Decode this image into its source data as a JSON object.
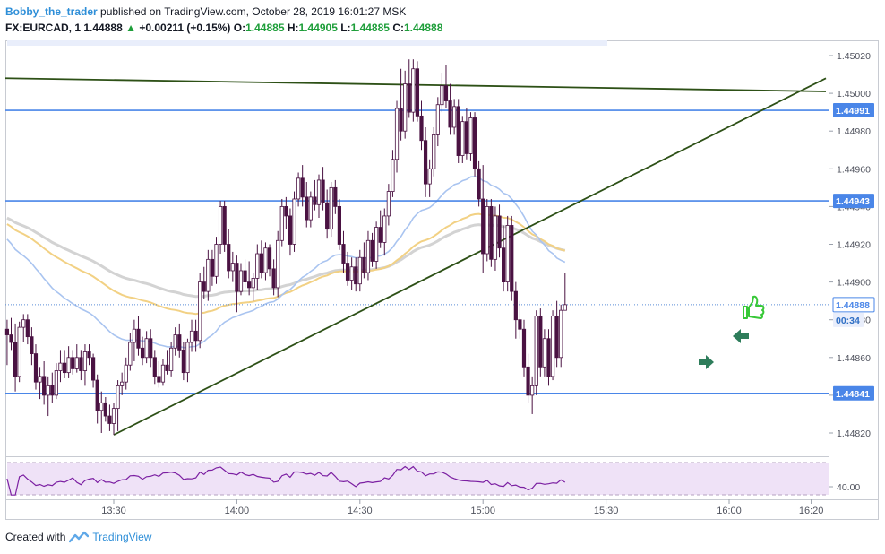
{
  "header": {
    "author": "Bobby_the_trader",
    "published": " published on TradingView.com, October 28, 2019 16:01:27 MSK",
    "symbol": "FX:EURCAD, 1",
    "last": "1.44888",
    "change_arrow": "▲",
    "change": "+0.00211 (+0.15%)",
    "o_label": "O:",
    "o": "1.44885",
    "h_label": "H:",
    "h": "1.44905",
    "l_label": "L:",
    "l": "1.44885",
    "c_label": "C:",
    "c": "1.44888"
  },
  "footer": {
    "created_with": "Created with",
    "brand": "TradingView"
  },
  "chart_data": {
    "type": "candlestick",
    "symbol": "FX:EURCAD",
    "interval": "1",
    "ylim": [
      1.4481,
      1.45035
    ],
    "y_ticks": [
      1.4502,
      1.45,
      1.4498,
      1.4496,
      1.4494,
      1.4492,
      1.449,
      1.4488,
      1.4486,
      1.4484,
      1.4482
    ],
    "x_ticks": [
      {
        "label": "13:30",
        "min": 0
      },
      {
        "label": "14:00",
        "min": 30
      },
      {
        "label": "14:30",
        "min": 60
      },
      {
        "label": "15:00",
        "min": 90
      },
      {
        "label": "15:30",
        "min": 120
      },
      {
        "label": "16:00",
        "min": 150
      },
      {
        "label": "16:20",
        "min": 170
      }
    ],
    "price_labels": [
      {
        "value": "1.44991",
        "type": "level"
      },
      {
        "value": "1.44943",
        "type": "level"
      },
      {
        "value": "1.44888",
        "type": "last"
      },
      {
        "value": "00:34",
        "type": "countdown"
      },
      {
        "value": "1.44841",
        "type": "level"
      }
    ],
    "horizontal_levels": [
      1.44991,
      1.44943,
      1.44841
    ],
    "last_price": 1.44888,
    "indicator": {
      "name": "RSI",
      "tick_label": "40.00"
    },
    "colors": {
      "up": "#ffffff",
      "down": "#4a1242",
      "level": "#4a86e8",
      "trendline": "#2d5016",
      "ma_blue": "#a9c4f0",
      "ma_yellow": "#f2d184",
      "ma_gray": "#d3d3d3",
      "rsi": "#7b1fa2",
      "rsi_fill": "#efe2f7",
      "arrow": "#2e7d5b",
      "thumb": "#37c837"
    },
    "candles": [
      [
        1.44875,
        1.4488,
        1.44856,
        1.44872
      ],
      [
        1.44872,
        1.44881,
        1.44864,
        1.44868
      ],
      [
        1.44868,
        1.44878,
        1.44842,
        1.4485
      ],
      [
        1.4485,
        1.44879,
        1.44847,
        1.44876
      ],
      [
        1.44876,
        1.44883,
        1.44868,
        1.4488
      ],
      [
        1.4488,
        1.44883,
        1.44867,
        1.44871
      ],
      [
        1.44871,
        1.44876,
        1.44856,
        1.44862
      ],
      [
        1.44862,
        1.44867,
        1.44843,
        1.44847
      ],
      [
        1.44847,
        1.44855,
        1.44838,
        1.4485
      ],
      [
        1.4485,
        1.44858,
        1.44835,
        1.4484
      ],
      [
        1.4484,
        1.4485,
        1.44829,
        1.44845
      ],
      [
        1.44845,
        1.44852,
        1.44836,
        1.4484
      ],
      [
        1.4484,
        1.44857,
        1.44838,
        1.44853
      ],
      [
        1.44853,
        1.44864,
        1.44847,
        1.44857
      ],
      [
        1.44857,
        1.44864,
        1.44849,
        1.44852
      ],
      [
        1.44852,
        1.44866,
        1.44849,
        1.4486
      ],
      [
        1.4486,
        1.44864,
        1.44851,
        1.44854
      ],
      [
        1.44854,
        1.44867,
        1.44852,
        1.4486
      ],
      [
        1.4486,
        1.44864,
        1.44848,
        1.44853
      ],
      [
        1.44853,
        1.44867,
        1.44845,
        1.44863
      ],
      [
        1.44863,
        1.44867,
        1.44856,
        1.4486
      ],
      [
        1.4486,
        1.44862,
        1.44844,
        1.44848
      ],
      [
        1.44848,
        1.44851,
        1.44825,
        1.44832
      ],
      [
        1.44832,
        1.44842,
        1.4482,
        1.44836
      ],
      [
        1.44836,
        1.44839,
        1.44826,
        1.44829
      ],
      [
        1.44829,
        1.44835,
        1.44821,
        1.44825
      ],
      [
        1.44825,
        1.44836,
        1.44819,
        1.44833
      ],
      [
        1.44833,
        1.44848,
        1.44821,
        1.44845
      ],
      [
        1.44845,
        1.44852,
        1.4484,
        1.44847
      ],
      [
        1.44847,
        1.4486,
        1.44843,
        1.44856
      ],
      [
        1.44856,
        1.44873,
        1.44853,
        1.44868
      ],
      [
        1.44868,
        1.4488,
        1.44858,
        1.44875
      ],
      [
        1.44875,
        1.44882,
        1.44861,
        1.44865
      ],
      [
        1.44865,
        1.44871,
        1.44856,
        1.4486
      ],
      [
        1.4486,
        1.44874,
        1.44857,
        1.4487
      ],
      [
        1.4487,
        1.44875,
        1.44855,
        1.4486
      ],
      [
        1.4486,
        1.44864,
        1.44846,
        1.4485
      ],
      [
        1.4485,
        1.44858,
        1.44844,
        1.44847
      ],
      [
        1.44847,
        1.44859,
        1.44845,
        1.44856
      ],
      [
        1.44856,
        1.44864,
        1.44851,
        1.44853
      ],
      [
        1.44853,
        1.44868,
        1.4485,
        1.44865
      ],
      [
        1.44865,
        1.44876,
        1.44861,
        1.44872
      ],
      [
        1.44872,
        1.44878,
        1.4486,
        1.44864
      ],
      [
        1.44864,
        1.44868,
        1.44848,
        1.44852
      ],
      [
        1.44852,
        1.4487,
        1.44847,
        1.44868
      ],
      [
        1.44868,
        1.4488,
        1.44863,
        1.44874
      ],
      [
        1.44874,
        1.4488,
        1.44863,
        1.44869
      ],
      [
        1.44869,
        1.44905,
        1.44865,
        1.449
      ],
      [
        1.449,
        1.44908,
        1.44891,
        1.44895
      ],
      [
        1.44895,
        1.44917,
        1.4489,
        1.44912
      ],
      [
        1.44912,
        1.44917,
        1.44898,
        1.44903
      ],
      [
        1.44903,
        1.44924,
        1.44899,
        1.4492
      ],
      [
        1.4492,
        1.44943,
        1.44915,
        1.4494
      ],
      [
        1.4494,
        1.44943,
        1.44916,
        1.4492
      ],
      [
        1.4492,
        1.44928,
        1.44902,
        1.44906
      ],
      [
        1.44906,
        1.44916,
        1.449,
        1.4491
      ],
      [
        1.4491,
        1.44914,
        1.44884,
        1.44895
      ],
      [
        1.44895,
        1.4491,
        1.44893,
        1.44906
      ],
      [
        1.44906,
        1.44912,
        1.44897,
        1.449
      ],
      [
        1.449,
        1.44911,
        1.44893,
        1.44897
      ],
      [
        1.44897,
        1.44905,
        1.4489,
        1.44902
      ],
      [
        1.44902,
        1.4492,
        1.44896,
        1.44915
      ],
      [
        1.44915,
        1.44922,
        1.44902,
        1.44905
      ],
      [
        1.44905,
        1.44921,
        1.44901,
        1.44918
      ],
      [
        1.44918,
        1.4492,
        1.44903,
        1.44907
      ],
      [
        1.44907,
        1.44912,
        1.44893,
        1.44897
      ],
      [
        1.44897,
        1.44927,
        1.44892,
        1.44922
      ],
      [
        1.44922,
        1.44944,
        1.44919,
        1.4494
      ],
      [
        1.4494,
        1.44945,
        1.44928,
        1.44935
      ],
      [
        1.44935,
        1.44939,
        1.44914,
        1.4492
      ],
      [
        1.4492,
        1.44948,
        1.44916,
        1.44944
      ],
      [
        1.44944,
        1.44958,
        1.4494,
        1.44955
      ],
      [
        1.44955,
        1.44962,
        1.4494,
        1.44945
      ],
      [
        1.44945,
        1.44953,
        1.44929,
        1.44933
      ],
      [
        1.44933,
        1.44948,
        1.44929,
        1.44945
      ],
      [
        1.44945,
        1.44954,
        1.44938,
        1.44941
      ],
      [
        1.44941,
        1.44957,
        1.44934,
        1.44954
      ],
      [
        1.44954,
        1.44961,
        1.44938,
        1.44942
      ],
      [
        1.44942,
        1.44949,
        1.44923,
        1.44928
      ],
      [
        1.44928,
        1.44953,
        1.44924,
        1.4495
      ],
      [
        1.4495,
        1.44954,
        1.44936,
        1.4494
      ],
      [
        1.4494,
        1.44944,
        1.44917,
        1.4492
      ],
      [
        1.4492,
        1.44927,
        1.44905,
        1.4491
      ],
      [
        1.4491,
        1.44916,
        1.44898,
        1.44901
      ],
      [
        1.44901,
        1.44913,
        1.44896,
        1.44908
      ],
      [
        1.44908,
        1.44913,
        1.44895,
        1.44899
      ],
      [
        1.44899,
        1.44917,
        1.44895,
        1.44913
      ],
      [
        1.44913,
        1.44921,
        1.44902,
        1.44905
      ],
      [
        1.44905,
        1.44927,
        1.44901,
        1.44922
      ],
      [
        1.44922,
        1.44926,
        1.44908,
        1.44911
      ],
      [
        1.44911,
        1.44932,
        1.44907,
        1.44929
      ],
      [
        1.44929,
        1.44938,
        1.44918,
        1.44921
      ],
      [
        1.44921,
        1.44939,
        1.44914,
        1.44935
      ],
      [
        1.44935,
        1.44952,
        1.4493,
        1.44948
      ],
      [
        1.44948,
        1.4497,
        1.44945,
        1.44965
      ],
      [
        1.44965,
        1.44996,
        1.44958,
        1.44992
      ],
      [
        1.44992,
        1.45013,
        1.44975,
        1.4498
      ],
      [
        1.4498,
        1.45012,
        1.44976,
        1.45005
      ],
      [
        1.45005,
        1.45018,
        1.44987,
        1.4499
      ],
      [
        1.4499,
        1.45018,
        1.44985,
        1.45013
      ],
      [
        1.45013,
        1.45017,
        1.44985,
        1.44988
      ],
      [
        1.44988,
        1.44996,
        1.4497,
        1.44975
      ],
      [
        1.44975,
        1.44982,
        1.44945,
        1.44952
      ],
      [
        1.44952,
        1.44965,
        1.44945,
        1.4496
      ],
      [
        1.4496,
        1.44982,
        1.44956,
        1.44978
      ],
      [
        1.44978,
        1.44998,
        1.44972,
        1.44994
      ],
      [
        1.44994,
        1.45011,
        1.4499,
        1.45004
      ],
      [
        1.45004,
        1.45015,
        1.44992,
        1.44996
      ],
      [
        1.44996,
        1.45005,
        1.44978,
        1.44982
      ],
      [
        1.44982,
        1.44997,
        1.44978,
        1.44993
      ],
      [
        1.44993,
        1.44997,
        1.44963,
        1.44967
      ],
      [
        1.44967,
        1.44988,
        1.44963,
        1.44985
      ],
      [
        1.44985,
        1.44992,
        1.44965,
        1.44968
      ],
      [
        1.44968,
        1.4499,
        1.44964,
        1.44987
      ],
      [
        1.44987,
        1.4499,
        1.44956,
        1.4496
      ],
      [
        1.4496,
        1.44964,
        1.4494,
        1.44944
      ],
      [
        1.44944,
        1.44962,
        1.44905,
        1.44915
      ],
      [
        1.44915,
        1.44944,
        1.44911,
        1.4494
      ],
      [
        1.4494,
        1.44944,
        1.44908,
        1.44912
      ],
      [
        1.44912,
        1.4494,
        1.44906,
        1.44935
      ],
      [
        1.44935,
        1.44941,
        1.44913,
        1.44918
      ],
      [
        1.44918,
        1.4493,
        1.44895,
        1.449
      ],
      [
        1.449,
        1.44935,
        1.44895,
        1.4493
      ],
      [
        1.4493,
        1.44935,
        1.4489,
        1.44895
      ],
      [
        1.44895,
        1.449,
        1.4487,
        1.4488
      ],
      [
        1.4488,
        1.4489,
        1.4487,
        1.44875
      ],
      [
        1.44875,
        1.4488,
        1.4485,
        1.44855
      ],
      [
        1.44855,
        1.44862,
        1.44836,
        1.4484
      ],
      [
        1.4484,
        1.4485,
        1.4483,
        1.44845
      ],
      [
        1.44845,
        1.44885,
        1.4484,
        1.44882
      ],
      [
        1.44882,
        1.44886,
        1.4485,
        1.44855
      ],
      [
        1.44855,
        1.44875,
        1.4485,
        1.4487
      ],
      [
        1.4487,
        1.44875,
        1.44845,
        1.4485
      ],
      [
        1.4485,
        1.44885,
        1.44848,
        1.44882
      ],
      [
        1.44882,
        1.4489,
        1.44855,
        1.4486
      ],
      [
        1.4486,
        1.44888,
        1.44855,
        1.44885
      ],
      [
        1.44885,
        1.44905,
        1.44885,
        1.44888
      ]
    ]
  }
}
